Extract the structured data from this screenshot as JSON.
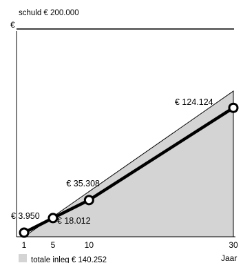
{
  "chart_data": {
    "type": "area",
    "debt_label": "schuld € 200.000",
    "debt_value": 200000,
    "y_axis_label": "€",
    "x_axis_label": "Jaar",
    "x_ticks": [
      1,
      5,
      10,
      30
    ],
    "xlim": [
      1,
      30
    ],
    "ylim": [
      0,
      200000
    ],
    "grid": false,
    "legend": {
      "label": "totale inleg € 140.252",
      "position": "bottom-left"
    },
    "series": [
      {
        "values": [
          {
            "x": 1,
            "y": 0
          },
          {
            "x": 30,
            "y": 140252
          }
        ],
        "color": "#d4d4d4",
        "style": "area"
      },
      {
        "values": [
          {
            "x": 1,
            "y": 3950,
            "label": "€ 3.950"
          },
          {
            "x": 5,
            "y": 18012,
            "label": "€ 18.012"
          },
          {
            "x": 10,
            "y": 35308,
            "label": "€ 35.308"
          },
          {
            "x": 30,
            "y": 124124,
            "label": "€ 124.124"
          }
        ],
        "color": "#000000",
        "style": "line-markers"
      }
    ]
  }
}
